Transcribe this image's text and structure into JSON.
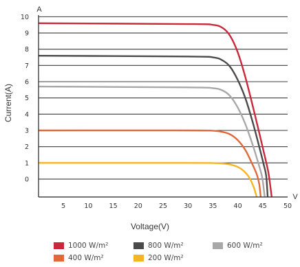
{
  "chart_data": {
    "type": "line",
    "xlabel": "Voltage(V)",
    "ylabel": "Current(A)",
    "x_unit": "V",
    "y_unit": "A",
    "xlim": [
      0,
      50
    ],
    "ylim": [
      -1.1,
      10.1
    ],
    "x_ticks": [
      5,
      10,
      15,
      20,
      25,
      30,
      35,
      40,
      45,
      50
    ],
    "y_ticks": [
      0,
      1,
      2,
      3,
      4,
      5,
      6,
      7,
      8,
      9,
      10
    ],
    "grid": "horizontal",
    "legend_position": "bottom",
    "series": [
      {
        "name": "1000 W/m²",
        "color": "#c8283a",
        "isc": 9.6,
        "voc": 46.8,
        "x": [
          0,
          30,
          35,
          37,
          38.5,
          40,
          41.5,
          43,
          44.5,
          45.5,
          46.2,
          46.8
        ],
        "y": [
          9.6,
          9.55,
          9.5,
          9.3,
          8.8,
          7.8,
          6.3,
          4.5,
          2.6,
          1.3,
          0.3,
          -1.1
        ]
      },
      {
        "name": "800 W/m²",
        "color": "#4a4a4a",
        "isc": 7.6,
        "voc": 46.0,
        "x": [
          0,
          30,
          35,
          37,
          38.5,
          40,
          41.5,
          43,
          44.3,
          45.2,
          45.7,
          46.0
        ],
        "y": [
          7.6,
          7.55,
          7.5,
          7.3,
          6.9,
          6.1,
          5.0,
          3.5,
          2.0,
          0.9,
          0.2,
          -1.1
        ]
      },
      {
        "name": "600 W/m²",
        "color": "#a8a8a8",
        "isc": 5.7,
        "voc": 45.4,
        "x": [
          0,
          30,
          35,
          37,
          38.5,
          40,
          41.5,
          43,
          44.2,
          44.9,
          45.4
        ],
        "y": [
          5.7,
          5.65,
          5.6,
          5.45,
          5.1,
          4.4,
          3.4,
          2.1,
          0.9,
          0.1,
          -1.1
        ]
      },
      {
        "name": "400 W/m²",
        "color": "#e0683a",
        "isc": 3.0,
        "voc": 44.6,
        "x": [
          0,
          30,
          35,
          37,
          38.5,
          40,
          41.5,
          42.8,
          43.8,
          44.3,
          44.6
        ],
        "y": [
          3.0,
          3.0,
          2.98,
          2.9,
          2.75,
          2.4,
          1.8,
          1.0,
          0.3,
          -0.3,
          -1.1
        ]
      },
      {
        "name": "200 W/m²",
        "color": "#f5b425",
        "isc": 1.0,
        "voc": 43.8,
        "x": [
          0,
          30,
          35,
          37,
          38.5,
          40,
          41.2,
          42.3,
          43.2,
          43.8
        ],
        "y": [
          1.0,
          1.0,
          0.99,
          0.96,
          0.9,
          0.75,
          0.5,
          0.1,
          -0.5,
          -1.1
        ]
      }
    ]
  }
}
